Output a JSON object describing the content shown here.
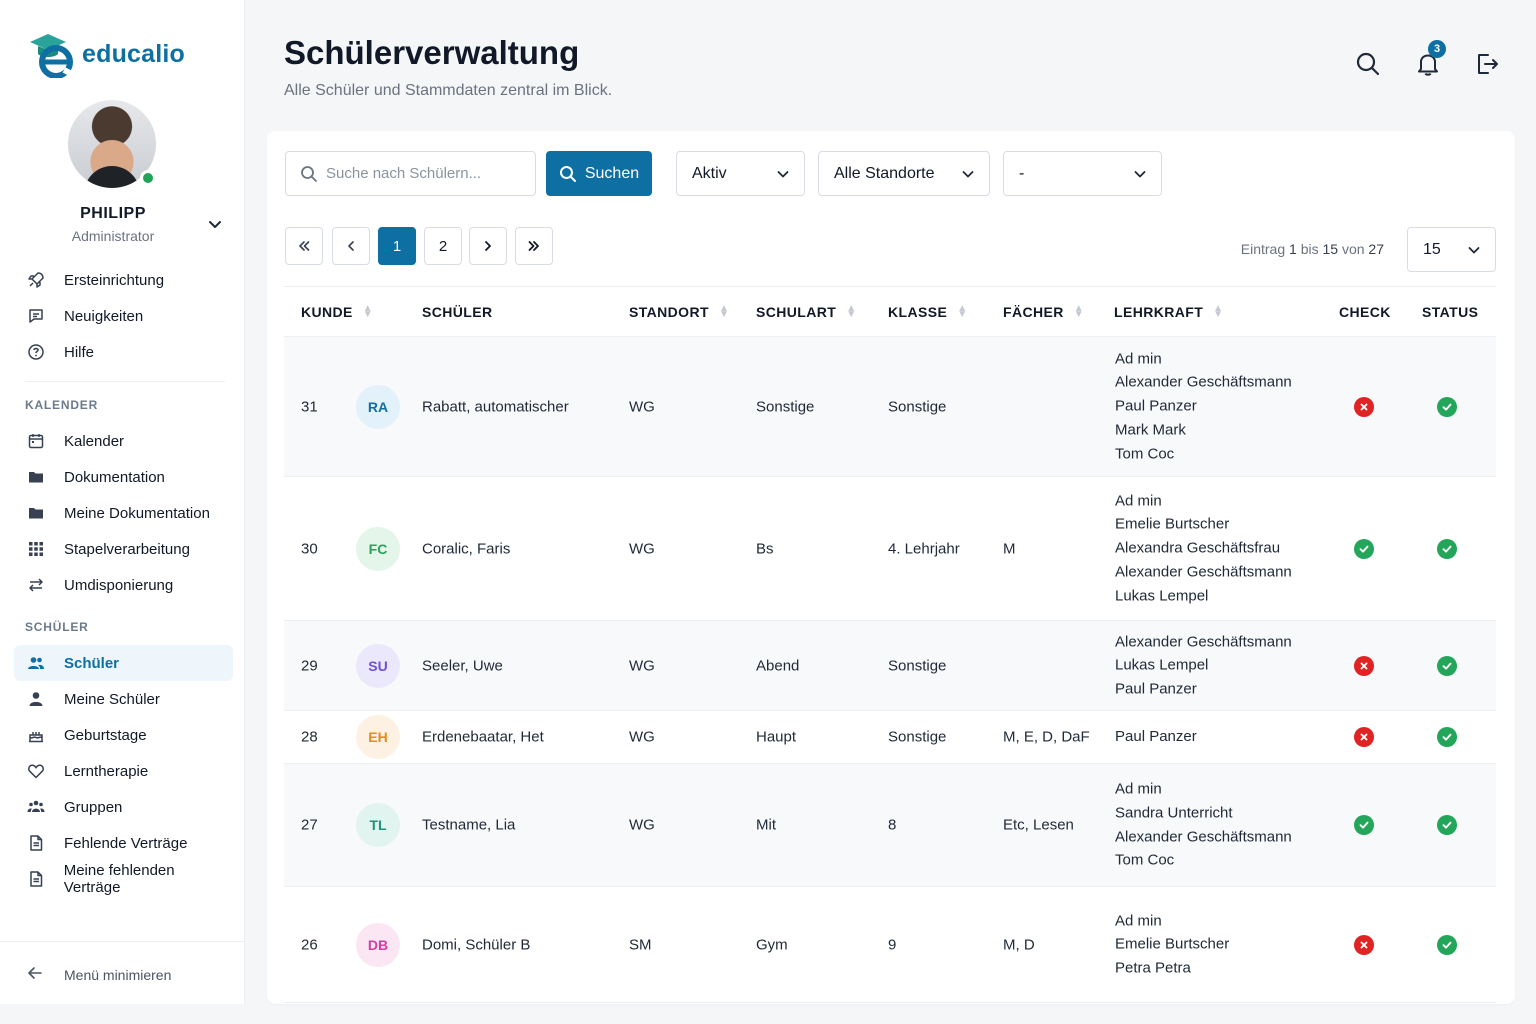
{
  "brand": {
    "name": "educalio",
    "color": "#0e6fa3"
  },
  "user": {
    "name": "PHILIPP",
    "role": "Administrator"
  },
  "nav_top": [
    {
      "label": "Ersteinrichtung",
      "icon": "rocket-icon"
    },
    {
      "label": "Neuigkeiten",
      "icon": "chat-icon"
    },
    {
      "label": "Hilfe",
      "icon": "help-icon"
    }
  ],
  "section_calendar": "KALENDER",
  "nav_calendar": [
    {
      "label": "Kalender",
      "icon": "calendar-icon"
    },
    {
      "label": "Dokumentation",
      "icon": "folder-icon"
    },
    {
      "label": "Meine Dokumentation",
      "icon": "folder-icon"
    },
    {
      "label": "Stapelverarbeitung",
      "icon": "grid-icon"
    },
    {
      "label": "Umdisponierung",
      "icon": "swap-icon"
    }
  ],
  "section_students": "SCHÜLER",
  "nav_students": [
    {
      "label": "Schüler",
      "icon": "users-icon",
      "active": true
    },
    {
      "label": "Meine Schüler",
      "icon": "user-icon"
    },
    {
      "label": "Geburtstage",
      "icon": "cake-icon"
    },
    {
      "label": "Lerntherapie",
      "icon": "heart-icon"
    },
    {
      "label": "Gruppen",
      "icon": "group-icon"
    },
    {
      "label": "Fehlende Verträge",
      "icon": "document-icon"
    },
    {
      "label": "Meine fehlenden Verträge",
      "icon": "document-icon"
    }
  ],
  "minimize_label": "Menü minimieren",
  "header": {
    "title": "Schülerverwaltung",
    "subtitle": "Alle Schüler und Stammdaten zentral im Blick.",
    "notification_count": "3"
  },
  "filters": {
    "search_placeholder": "Suche nach Schülern...",
    "search_button": "Suchen",
    "status": "Aktiv",
    "location": "Alle Standorte",
    "extra": "-"
  },
  "pagination": {
    "pages": [
      "1",
      "2"
    ],
    "current": "1",
    "entries_prefix": "Eintrag",
    "entries_from": "1",
    "entries_mid": "bis",
    "entries_to": "15",
    "entries_of": "von",
    "entries_total": "27",
    "per_page": "15"
  },
  "columns": {
    "kunde": "KUNDE",
    "schueler": "SCHÜLER",
    "standort": "STANDORT",
    "schulart": "SCHULART",
    "klasse": "KLASSE",
    "faecher": "FÄCHER",
    "lehrkraft": "LEHRKRAFT",
    "check": "CHECK",
    "status": "STATUS"
  },
  "rows": [
    {
      "kunde": "31",
      "initials": "RA",
      "badge_bg": "#e3f1fb",
      "badge_fg": "#0e6fa3",
      "name": "Rabatt, automatischer",
      "standort": "WG",
      "schulart": "Sonstige",
      "klasse": "Sonstige",
      "faecher": "",
      "teachers": [
        "Ad min",
        "Alexander Geschäftsmann",
        "Paul Panzer",
        "Mark Mark",
        "Tom Coc"
      ],
      "check": false,
      "status": true
    },
    {
      "kunde": "30",
      "initials": "FC",
      "badge_bg": "#e4f5ea",
      "badge_fg": "#23a55a",
      "name": "Coralic, Faris",
      "standort": "WG",
      "schulart": "Bs",
      "klasse": "4. Lehrjahr",
      "faecher": "M",
      "teachers": [
        "Ad min",
        "Emelie Burtscher",
        "Alexandra Geschäftsfrau",
        "Alexander Geschäftsmann",
        "Lukas Lempel"
      ],
      "check": true,
      "status": true
    },
    {
      "kunde": "29",
      "initials": "SU",
      "badge_bg": "#ebe8fb",
      "badge_fg": "#6d4fd6",
      "name": "Seeler, Uwe",
      "standort": "WG",
      "schulart": "Abend",
      "klasse": "Sonstige",
      "faecher": "",
      "teachers": [
        "Alexander Geschäftsmann",
        "Lukas Lempel",
        "Paul Panzer"
      ],
      "check": false,
      "status": true
    },
    {
      "kunde": "28",
      "initials": "EH",
      "badge_bg": "#fdf1e3",
      "badge_fg": "#e8891a",
      "name": "Erdenebaatar, Het",
      "standort": "WG",
      "schulart": "Haupt",
      "klasse": "Sonstige",
      "faecher": "M, E, D, DaF",
      "teachers": [
        "Paul Panzer"
      ],
      "check": false,
      "status": true
    },
    {
      "kunde": "27",
      "initials": "TL",
      "badge_bg": "#e2f4ef",
      "badge_fg": "#16957a",
      "name": "Testname, Lia",
      "standort": "WG",
      "schulart": "Mit",
      "klasse": "8",
      "faecher": "Etc, Lesen",
      "teachers": [
        "Ad min",
        "Sandra Unterricht",
        "Alexander Geschäftsmann",
        "Tom Coc"
      ],
      "check": true,
      "status": true
    },
    {
      "kunde": "26",
      "initials": "DB",
      "badge_bg": "#fbe6f3",
      "badge_fg": "#d43ea0",
      "name": "Domi, Schüler B",
      "standort": "SM",
      "schulart": "Gym",
      "klasse": "9",
      "faecher": "M, D",
      "teachers": [
        "Ad min",
        "Emelie Burtscher",
        "Petra Petra"
      ],
      "check": false,
      "status": true
    }
  ]
}
